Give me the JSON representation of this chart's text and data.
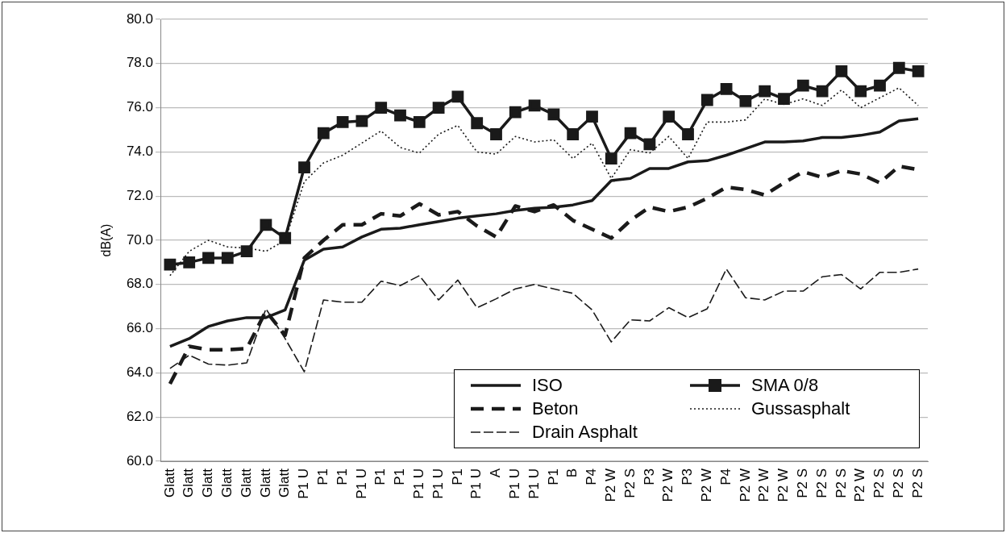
{
  "chart_data": {
    "type": "line",
    "ylabel": "dB(A)",
    "categories": [
      "Glatt",
      "Glatt",
      "Glatt",
      "Glatt",
      "Glatt",
      "Glatt",
      "Glatt",
      "P1 U",
      "P1",
      "P1",
      "P1 U",
      "P1",
      "P1",
      "P1 U",
      "P1 U",
      "P1",
      "P1 U",
      "A",
      "P1 U",
      "P1 U",
      "P1",
      "B",
      "P4",
      "P2 W",
      "P2 S",
      "P3",
      "P2 W",
      "P3",
      "P2 W",
      "P4",
      "P2 W",
      "P2 W",
      "P2 W",
      "P2 S",
      "P2 S",
      "P2 S",
      "P2 W",
      "P2 S",
      "P2 S",
      "P2 S"
    ],
    "series": [
      {
        "name": "ISO",
        "color": "#1a1a1a",
        "line_style": "solid",
        "marker": "none",
        "values": [
          65.2,
          65.55,
          66.1,
          66.35,
          66.5,
          66.5,
          66.85,
          69.1,
          69.6,
          69.7,
          70.15,
          70.5,
          70.55,
          70.7,
          70.85,
          71.0,
          71.1,
          71.2,
          71.35,
          71.45,
          71.5,
          71.6,
          71.8,
          72.7,
          72.8,
          73.25,
          73.25,
          73.55,
          73.6,
          73.85,
          74.15,
          74.45,
          74.45,
          74.5,
          74.65,
          74.65,
          74.75,
          74.9,
          75.4,
          75.5
        ]
      },
      {
        "name": "SMA 0/8",
        "color": "#1a1a1a",
        "line_style": "solid",
        "marker": "square",
        "values": [
          68.9,
          69.0,
          69.2,
          69.2,
          69.5,
          70.7,
          70.1,
          73.3,
          74.85,
          75.35,
          75.4,
          76.0,
          75.65,
          75.35,
          76.0,
          76.5,
          75.3,
          74.8,
          75.8,
          76.1,
          75.7,
          74.8,
          75.6,
          73.7,
          74.85,
          74.35,
          75.6,
          74.8,
          76.35,
          76.85,
          76.3,
          76.75,
          76.4,
          77.0,
          76.75,
          77.65,
          76.75,
          77.0,
          77.8,
          77.65
        ]
      },
      {
        "name": "Beton",
        "color": "#1a1a1a",
        "line_style": "dashed",
        "marker": "none",
        "values": [
          63.5,
          65.2,
          65.05,
          65.05,
          65.1,
          66.8,
          65.7,
          69.2,
          70.0,
          70.7,
          70.7,
          71.2,
          71.1,
          71.65,
          71.15,
          71.3,
          70.65,
          70.15,
          71.55,
          71.3,
          71.6,
          70.9,
          70.5,
          70.1,
          70.9,
          71.5,
          71.3,
          71.5,
          71.9,
          72.4,
          72.3,
          72.05,
          72.6,
          73.1,
          72.85,
          73.15,
          73.0,
          72.6,
          73.35,
          73.2
        ]
      },
      {
        "name": "Gussasphalt",
        "color": "#1a1a1a",
        "line_style": "dotted",
        "marker": "none",
        "values": [
          68.4,
          69.5,
          70.0,
          69.7,
          69.65,
          69.5,
          70.0,
          72.65,
          73.5,
          73.85,
          74.4,
          74.95,
          74.2,
          73.95,
          74.8,
          75.2,
          74.0,
          73.9,
          74.7,
          74.45,
          74.55,
          73.7,
          74.4,
          72.8,
          74.1,
          73.95,
          74.7,
          73.7,
          75.35,
          75.35,
          75.45,
          76.4,
          76.15,
          76.4,
          76.1,
          76.8,
          76.0,
          76.45,
          76.9,
          76.1
        ]
      },
      {
        "name": "Drain Asphalt",
        "color": "#1a1a1a",
        "line_style": "dashed",
        "marker": "none",
        "values": [
          64.2,
          64.8,
          64.4,
          64.35,
          64.45,
          66.9,
          65.55,
          64.05,
          67.3,
          67.2,
          67.2,
          68.15,
          67.95,
          68.4,
          67.3,
          68.2,
          66.95,
          67.35,
          67.8,
          68.0,
          67.8,
          67.6,
          66.85,
          65.4,
          66.4,
          66.35,
          66.95,
          66.5,
          66.9,
          68.7,
          67.4,
          67.3,
          67.7,
          67.7,
          68.35,
          68.45,
          67.8,
          68.55,
          68.55,
          68.7
        ]
      }
    ],
    "ylim": [
      60,
      80
    ],
    "yticks": [
      {
        "value": 60,
        "label": "60.0"
      },
      {
        "value": 62,
        "label": "62.0"
      },
      {
        "value": 64,
        "label": "64.0"
      },
      {
        "value": 66,
        "label": "66.0"
      },
      {
        "value": 68,
        "label": "68.0"
      },
      {
        "value": 70,
        "label": "70.0"
      },
      {
        "value": 72,
        "label": "72.0"
      },
      {
        "value": 74,
        "label": "74.0"
      },
      {
        "value": 76,
        "label": "76.0"
      },
      {
        "value": 78,
        "label": "78.0"
      },
      {
        "value": 80,
        "label": "80.0"
      }
    ],
    "grid": "y",
    "legend": "bottom right"
  }
}
